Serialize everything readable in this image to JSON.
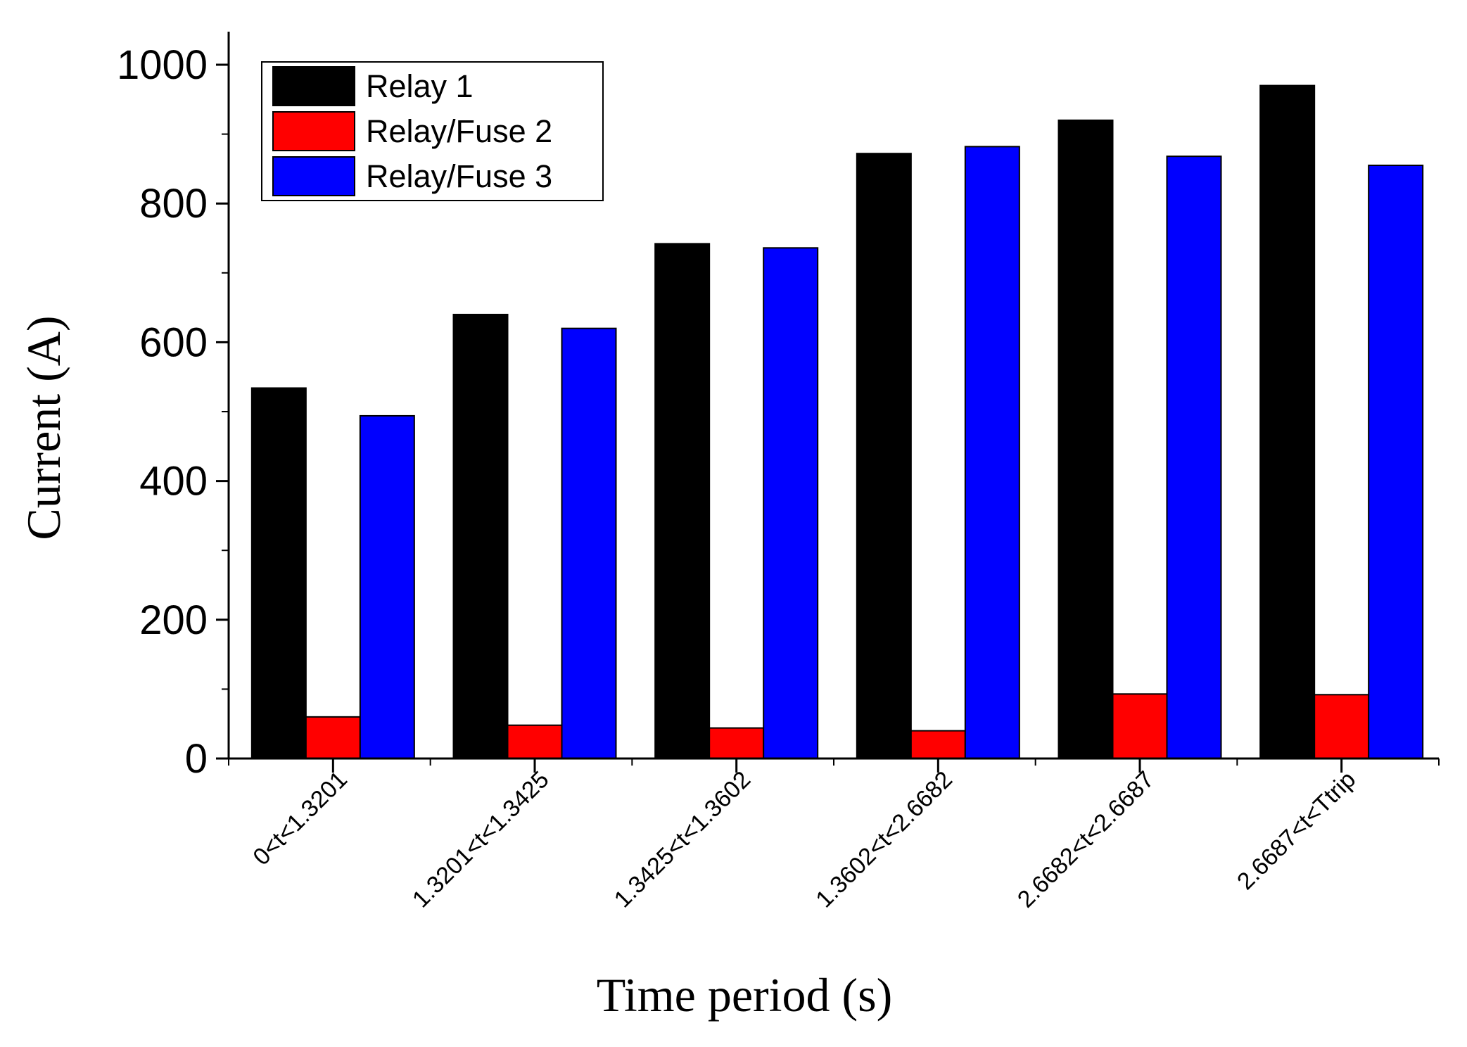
{
  "chart_data": {
    "type": "bar",
    "title": "",
    "xlabel": "Time period (s)",
    "ylabel": "Current (A)",
    "ylim": [
      0,
      1050
    ],
    "yticks": [
      0,
      200,
      400,
      600,
      800,
      1000
    ],
    "grid": false,
    "legend_position": "top-left",
    "categories": [
      "0<t<1.3201",
      "1.3201<t<1.3425",
      "1.3425<t<1.3602",
      "1.3602<t<2.6682",
      "2.6682<t<2.6687",
      "2.6687<t<Ttrip"
    ],
    "series": [
      {
        "name": "Relay 1",
        "color": "#000000",
        "values": [
          534,
          640,
          742,
          872,
          920,
          970
        ]
      },
      {
        "name": "Relay/Fuse 2",
        "color": "#ff0000",
        "values": [
          60,
          48,
          44,
          40,
          93,
          92
        ]
      },
      {
        "name": "Relay/Fuse 3",
        "color": "#0000ff",
        "values": [
          494,
          620,
          736,
          882,
          868,
          855
        ]
      }
    ]
  }
}
